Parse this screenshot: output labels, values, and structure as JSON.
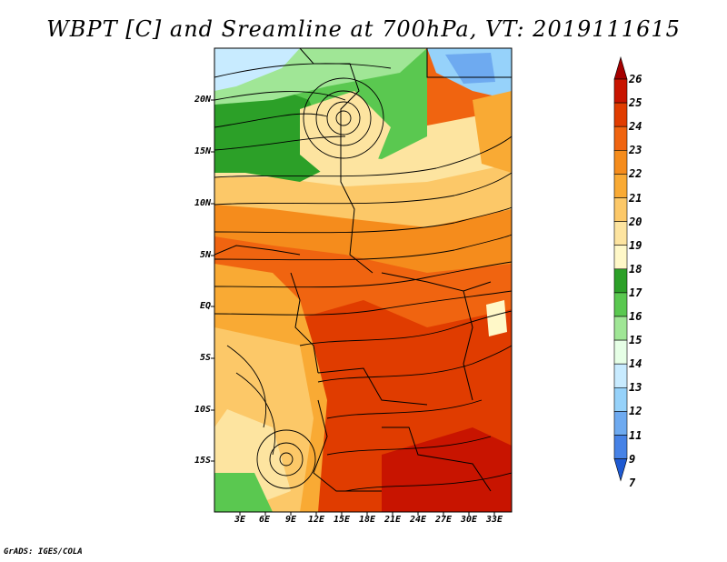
{
  "title": "WBPT [C] and Sreamline at 700hPa, VT: 2019111615",
  "credit": "GrADS: IGES/COLA",
  "map": {
    "lat_labels": [
      "20N",
      "15N",
      "10N",
      "5N",
      "EQ",
      "5S",
      "10S",
      "15S"
    ],
    "lon_labels": [
      "3E",
      "6E",
      "9E",
      "12E",
      "15E",
      "18E",
      "21E",
      "24E",
      "27E",
      "30E",
      "33E"
    ]
  },
  "colorbar": {
    "levels": [
      "26",
      "25",
      "24",
      "23",
      "22",
      "21",
      "20",
      "19",
      "18",
      "17",
      "16",
      "15",
      "14",
      "13",
      "12",
      "11",
      "9",
      "7"
    ],
    "colors": [
      "#a50000",
      "#c81400",
      "#e03c00",
      "#f06410",
      "#f58c1c",
      "#f9aa34",
      "#fcc868",
      "#fde4a0",
      "#fff8c8",
      "#2ca028",
      "#5ac850",
      "#a0e696",
      "#e6ffe6",
      "#c8ebff",
      "#96d2fa",
      "#6eaaf0",
      "#4682e6",
      "#1e5ad2"
    ]
  }
}
